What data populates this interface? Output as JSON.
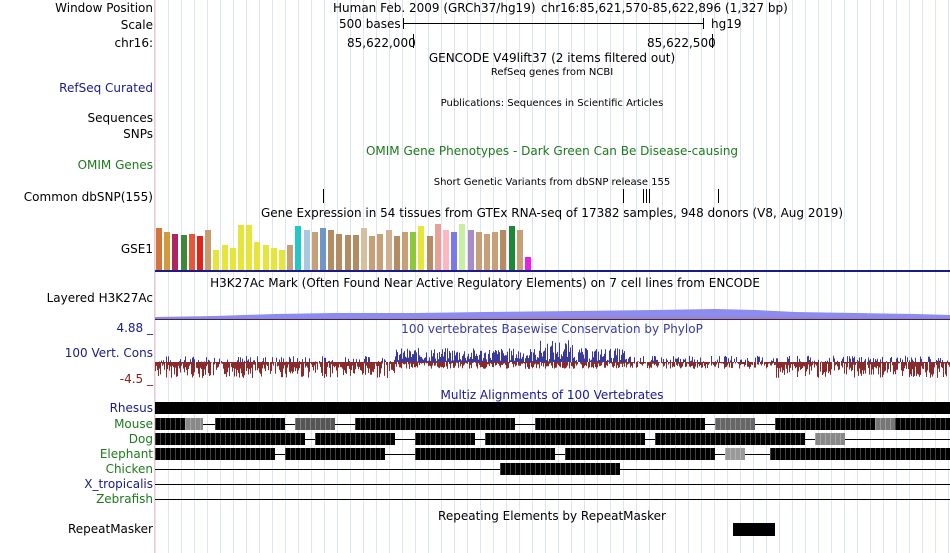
{
  "labels": {
    "window_position": "Window Position",
    "scale": "Scale",
    "chr": "chr16:",
    "refseq": "RefSeq Curated",
    "sequences": "Sequences",
    "snps": "SNPs",
    "omim": "OMIM Genes",
    "dbsnp": "Common dbSNP(155)",
    "gse1": "GSE1",
    "h3k27ac": "Layered H3K27Ac",
    "cons": "100 Vert. Cons",
    "cons_max": "4.88 _",
    "cons_min": "-4.5 _",
    "repeatmasker": "RepeatMasker"
  },
  "header": {
    "assembly": "Human Feb. 2009 (GRCh37/hg19)",
    "position": "chr16:85,621,570-85,622,896 (1,327 bp)",
    "scale_text": "500 bases",
    "scale_db": "hg19",
    "tick1": "85,622,000",
    "tick2": "85,622,500"
  },
  "titles": {
    "gencode": "GENCODE V49lift37 (2 items filtered out)",
    "refseq": "RefSeq genes from NCBI",
    "publications": "Publications: Sequences in Scientific Articles",
    "omim": "OMIM Gene Phenotypes - Dark Green Can Be Disease-causing",
    "dbsnp": "Short Genetic Variants from dbSNP release 155",
    "gtex": "Gene Expression in 54 tissues from GTEx RNA-seq of 17382 samples, 948 donors (V8, Aug 2019)",
    "h3k27ac": "H3K27Ac Mark (Often Found Near Active Regulatory Elements) on 7 cell lines from ENCODE",
    "phylop": "100 vertebrates Basewise Conservation by PhyloP",
    "multiz": "Multiz Alignments of 100 Vertebrates",
    "repeatmasker": "Repeating Elements by RepeatMasker"
  },
  "species": [
    "Rhesus",
    "Mouse",
    "Dog",
    "Elephant",
    "Chicken",
    "X_tropicalis",
    "Zebrafish"
  ],
  "gtex_colors": [
    "#d4743a",
    "#d49a3a",
    "#b0245f",
    "#3a8a3a",
    "#e8563a",
    "#e3231a",
    "#c89c6e",
    "#e6e63a",
    "#e6e63a",
    "#e6e63a",
    "#e6e63a",
    "#e6e63a",
    "#e6e63a",
    "#e6e63a",
    "#e6e63a",
    "#e6e63a",
    "#c8a078",
    "#22c8c8",
    "#a8c8e0",
    "#c8a078",
    "#6e96c8",
    "#b48c64",
    "#b48c64",
    "#b48c64",
    "#b48c64",
    "#d4c0a0",
    "#c8a078",
    "#c8a078",
    "#d0b090",
    "#b48c64",
    "#c8a078",
    "#8cc83a",
    "#e6e63a",
    "#b48c64",
    "#e8a098",
    "#ffb6c1",
    "#7a7ae6",
    "#c8f0a0",
    "#a88cc8",
    "#c8a078",
    "#c8a078",
    "#c8a078",
    "#b48c64",
    "#1a8a3a",
    "#c8a078",
    "#e622e6"
  ],
  "gtex_values": [
    42,
    38,
    36,
    35,
    36,
    34,
    40,
    20,
    25,
    22,
    45,
    45,
    28,
    25,
    22,
    20,
    25,
    44,
    40,
    38,
    42,
    40,
    36,
    35,
    35,
    42,
    34,
    36,
    40,
    34,
    38,
    38,
    44,
    34,
    46,
    40,
    38,
    46,
    40,
    38,
    36,
    38,
    40,
    44,
    40,
    13
  ]
}
